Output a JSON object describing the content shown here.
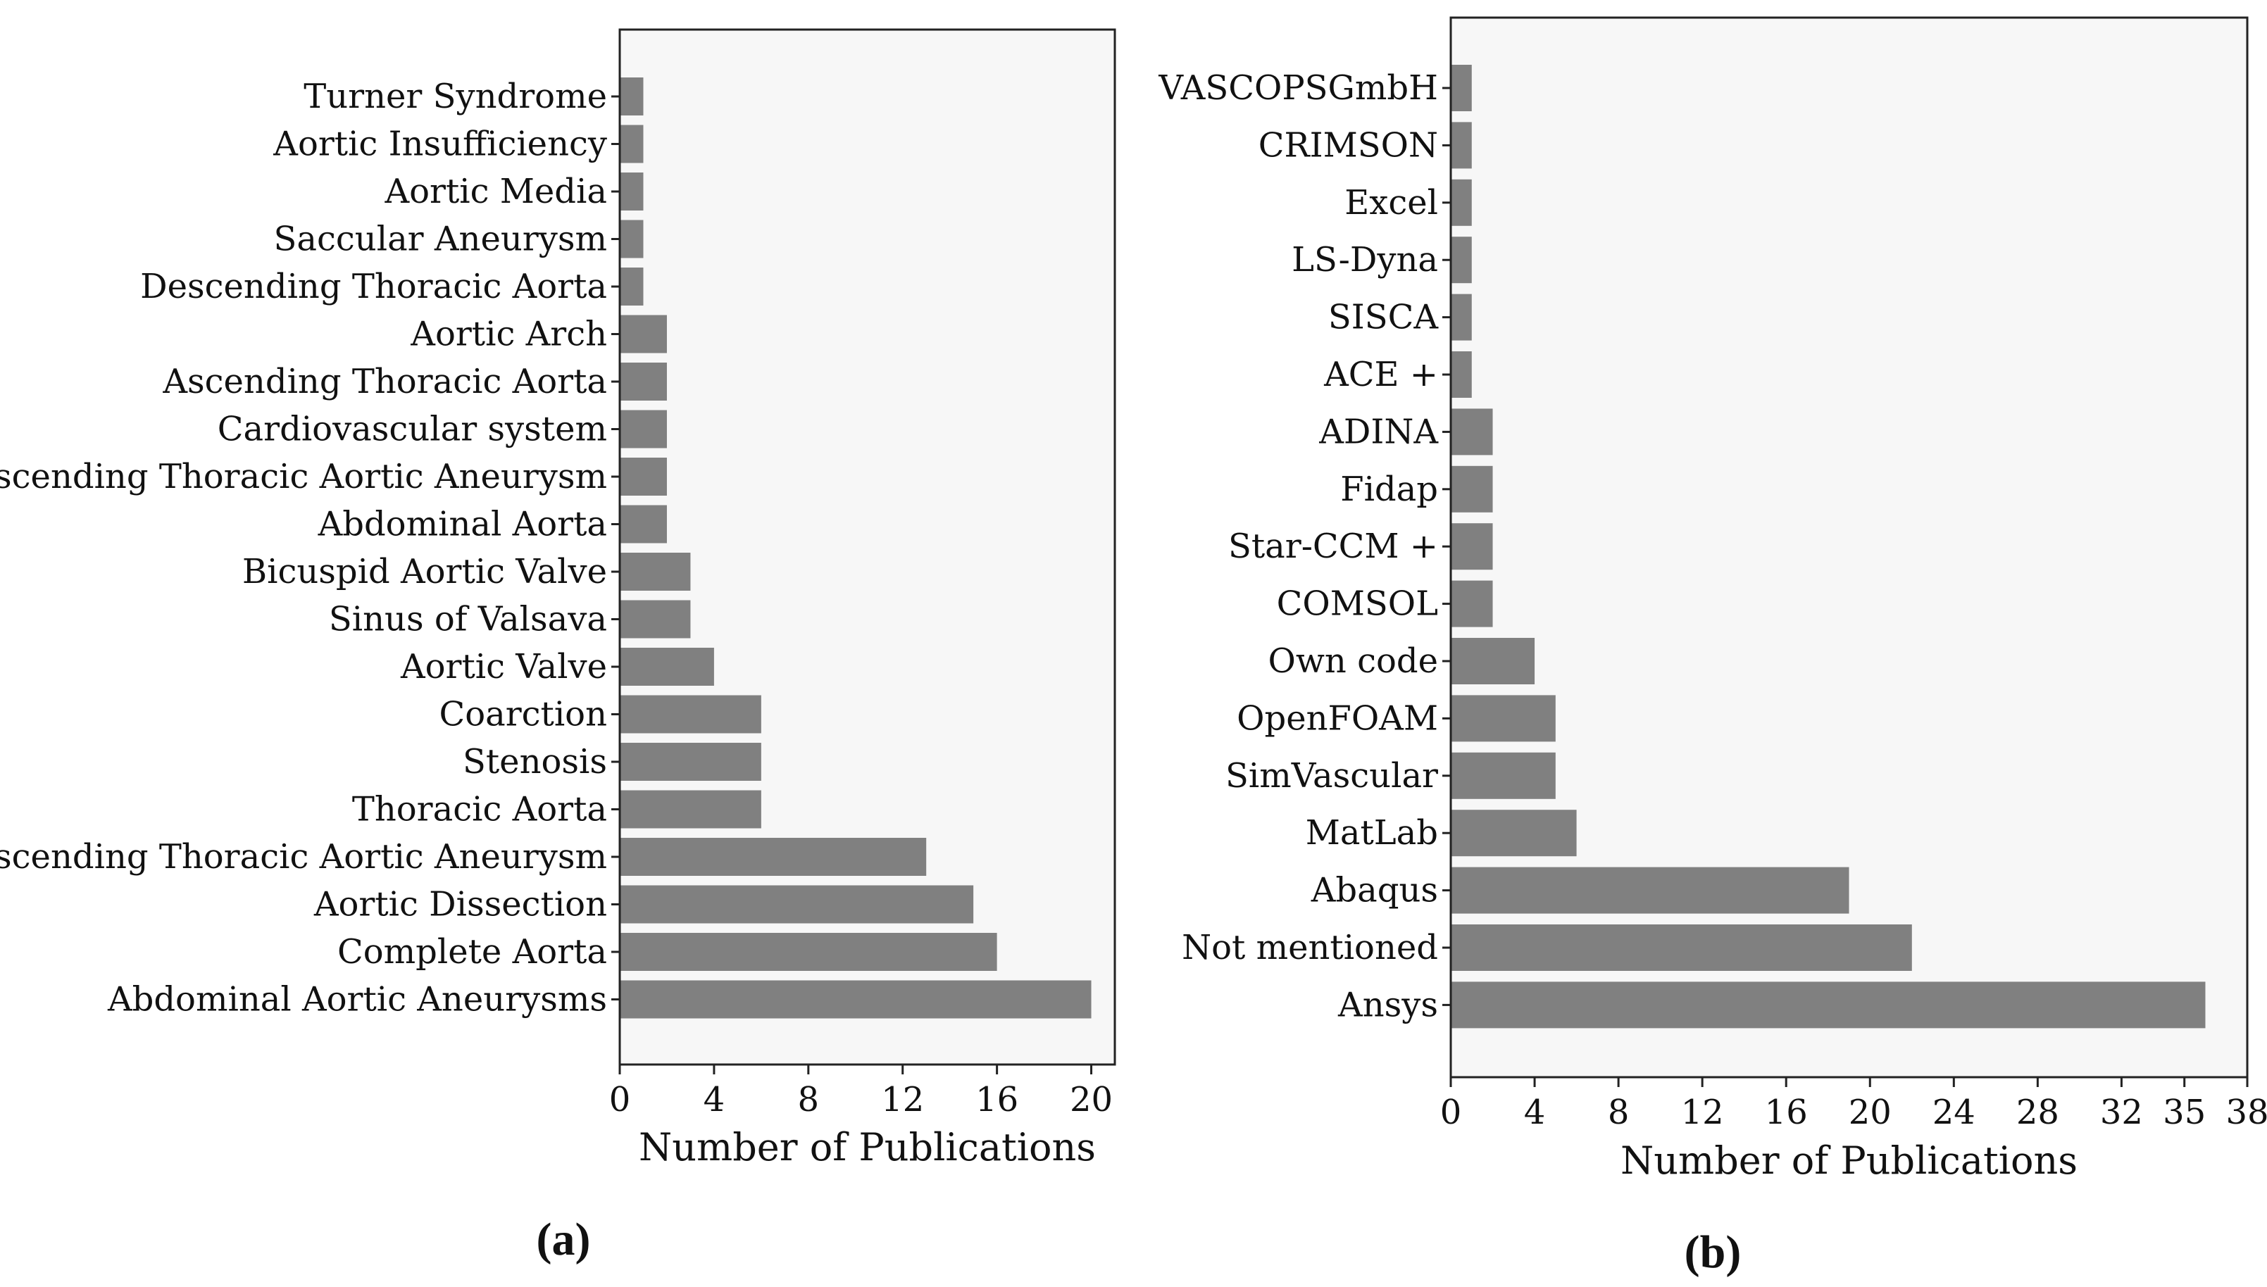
{
  "figure": {
    "colors": {
      "bar": "#808080",
      "plot_bg": "#f7f7f7",
      "frame": "#222222",
      "text": "#111111"
    }
  },
  "chart_data": [
    {
      "panel": "(a)",
      "type": "bar",
      "orientation": "horizontal",
      "title": "",
      "xlabel": "Number of Publications",
      "ylabel": "",
      "xlim": [
        0,
        21
      ],
      "xticks": [
        0,
        4,
        8,
        12,
        16,
        20
      ],
      "grid": false,
      "categories": [
        "Turner Syndrome",
        "Aortic Insufficiency",
        "Aortic Media",
        "Saccular Aneurysm",
        "Descending Thoracic Aorta",
        "Aortic Arch",
        "Ascending Thoracic Aorta",
        "Cardiovascular system",
        "Descending Thoracic Aortic Aneurysm",
        "Abdominal Aorta",
        "Bicuspid Aortic Valve",
        "Sinus of Valsava",
        "Aortic Valve",
        "Coarction",
        "Stenosis",
        "Thoracic Aorta",
        "Ascending Thoracic Aortic Aneurysm",
        "Aortic Dissection",
        "Complete Aorta",
        "Abdominal Aortic Aneurysms"
      ],
      "values": [
        1,
        1,
        1,
        1,
        1,
        2,
        2,
        2,
        2,
        2,
        3,
        3,
        4,
        6,
        6,
        6,
        13,
        15,
        16,
        20
      ]
    },
    {
      "panel": "(b)",
      "type": "bar",
      "orientation": "horizontal",
      "title": "",
      "xlabel": "Number of Publications",
      "ylabel": "",
      "xlim": [
        0,
        38
      ],
      "xticks": [
        0,
        4,
        8,
        12,
        16,
        20,
        24,
        28,
        32,
        35,
        38
      ],
      "grid": false,
      "categories": [
        "VASCOPSGmbH",
        "CRIMSON",
        "Excel",
        "LS-Dyna",
        "SISCA",
        "ACE +",
        "ADINA",
        "Fidap",
        "Star-CCM +",
        "COMSOL",
        "Own code",
        "OpenFOAM",
        "SimVascular",
        "MatLab",
        "Abaqus",
        "Not mentioned",
        "Ansys"
      ],
      "values": [
        1,
        1,
        1,
        1,
        1,
        1,
        2,
        2,
        2,
        2,
        4,
        5,
        5,
        6,
        19,
        22,
        36
      ]
    }
  ]
}
